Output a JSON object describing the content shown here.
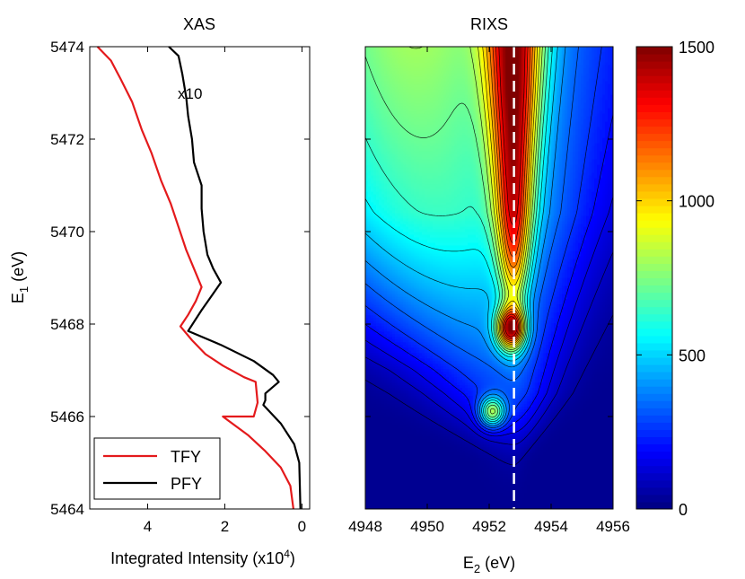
{
  "chart_data": [
    {
      "type": "line",
      "title": "XAS",
      "xlabel_main": "Integrated Intensity (x10",
      "xlabel_sup": "4",
      "xlabel_tail": ")",
      "ylabel_main": "E",
      "ylabel_sub": "1",
      "ylabel_tail": " (eV)",
      "xlim": [
        5.5,
        -0.2
      ],
      "ylim": [
        5464,
        5474
      ],
      "xticks": [
        4,
        2,
        0
      ],
      "xtick_labels": [
        "4",
        "2",
        "0"
      ],
      "yticks": [
        5464,
        5466,
        5468,
        5470,
        5472,
        5474
      ],
      "ytick_labels": [
        "5464",
        "5466",
        "5468",
        "5470",
        "5472",
        "5474"
      ],
      "annotation": "x10",
      "legend": [
        "TFY",
        "PFY"
      ],
      "legend_position": "bottom-left",
      "series": [
        {
          "name": "TFY",
          "color": "#e41a1c",
          "points": [
            [
              5.3,
              5474
            ],
            [
              4.95,
              5473.7
            ],
            [
              4.7,
              5473.3
            ],
            [
              4.4,
              5472.8
            ],
            [
              4.15,
              5472.2
            ],
            [
              3.9,
              5471.7
            ],
            [
              3.65,
              5471.1
            ],
            [
              3.4,
              5470.6
            ],
            [
              3.2,
              5470.1
            ],
            [
              3.0,
              5469.6
            ],
            [
              2.75,
              5469.1
            ],
            [
              2.6,
              5468.8
            ],
            [
              2.75,
              5468.5
            ],
            [
              2.95,
              5468.2
            ],
            [
              3.15,
              5467.95
            ],
            [
              2.85,
              5467.65
            ],
            [
              2.5,
              5467.35
            ],
            [
              2.05,
              5467.1
            ],
            [
              1.5,
              5466.85
            ],
            [
              1.2,
              5466.75
            ],
            [
              1.15,
              5466.3
            ],
            [
              1.25,
              5466.0
            ],
            [
              2.05,
              5466.0
            ],
            [
              1.4,
              5465.6
            ],
            [
              0.95,
              5465.25
            ],
            [
              0.55,
              5464.9
            ],
            [
              0.3,
              5464.5
            ],
            [
              0.22,
              5464.0
            ]
          ]
        },
        {
          "name": "PFY",
          "color": "#000000",
          "points": [
            [
              3.45,
              5474
            ],
            [
              3.2,
              5473.8
            ],
            [
              3.1,
              5473.4
            ],
            [
              3.0,
              5472.9
            ],
            [
              2.95,
              5472.5
            ],
            [
              2.85,
              5472.0
            ],
            [
              2.8,
              5471.5
            ],
            [
              2.6,
              5471.0
            ],
            [
              2.6,
              5470.5
            ],
            [
              2.55,
              5470.0
            ],
            [
              2.45,
              5469.5
            ],
            [
              2.3,
              5469.2
            ],
            [
              2.1,
              5468.9
            ],
            [
              2.35,
              5468.6
            ],
            [
              2.6,
              5468.3
            ],
            [
              2.95,
              5467.85
            ],
            [
              2.1,
              5467.55
            ],
            [
              1.25,
              5467.2
            ],
            [
              0.75,
              5466.9
            ],
            [
              0.6,
              5466.75
            ],
            [
              0.95,
              5466.5
            ],
            [
              0.95,
              5466.35
            ],
            [
              1.0,
              5466.25
            ],
            [
              0.55,
              5465.85
            ],
            [
              0.2,
              5465.4
            ],
            [
              0.07,
              5465.0
            ],
            [
              0.04,
              5464.0
            ]
          ]
        }
      ]
    },
    {
      "type": "heatmap",
      "title": "RIXS",
      "xlabel_main": "E",
      "xlabel_sub": "2",
      "xlabel_tail": " (eV)",
      "xlim": [
        4948,
        4956
      ],
      "ylim": [
        5464,
        5474
      ],
      "xticks": [
        4948,
        4950,
        4952,
        4954,
        4956
      ],
      "xtick_labels": [
        "4948",
        "4950",
        "4952",
        "4954",
        "4956"
      ],
      "dashed_line_x": 4952.8,
      "colorbar": {
        "range": [
          0,
          1500
        ],
        "ticks": [
          0,
          500,
          1000,
          1500
        ],
        "tick_labels": [
          "0",
          "500",
          "1000",
          "1500"
        ],
        "colormap": "jet"
      },
      "contour_levels": [
        50,
        100,
        150,
        200,
        260,
        330,
        400,
        480,
        560,
        640,
        720,
        800,
        880,
        960,
        1040,
        1120,
        1200,
        1280,
        1360
      ],
      "features": [
        {
          "name": "main resonance ridge",
          "E2": 4952.8,
          "E1_from": 5468.0,
          "E1_to": 5474.0,
          "peak": 1450
        },
        {
          "name": "pre-edge peak 1",
          "E2": 4952.7,
          "E1": 5467.9,
          "peak": 1320
        },
        {
          "name": "pre-edge peak 2",
          "E2": 4952.1,
          "E1": 5466.1,
          "peak": 820
        }
      ]
    }
  ]
}
